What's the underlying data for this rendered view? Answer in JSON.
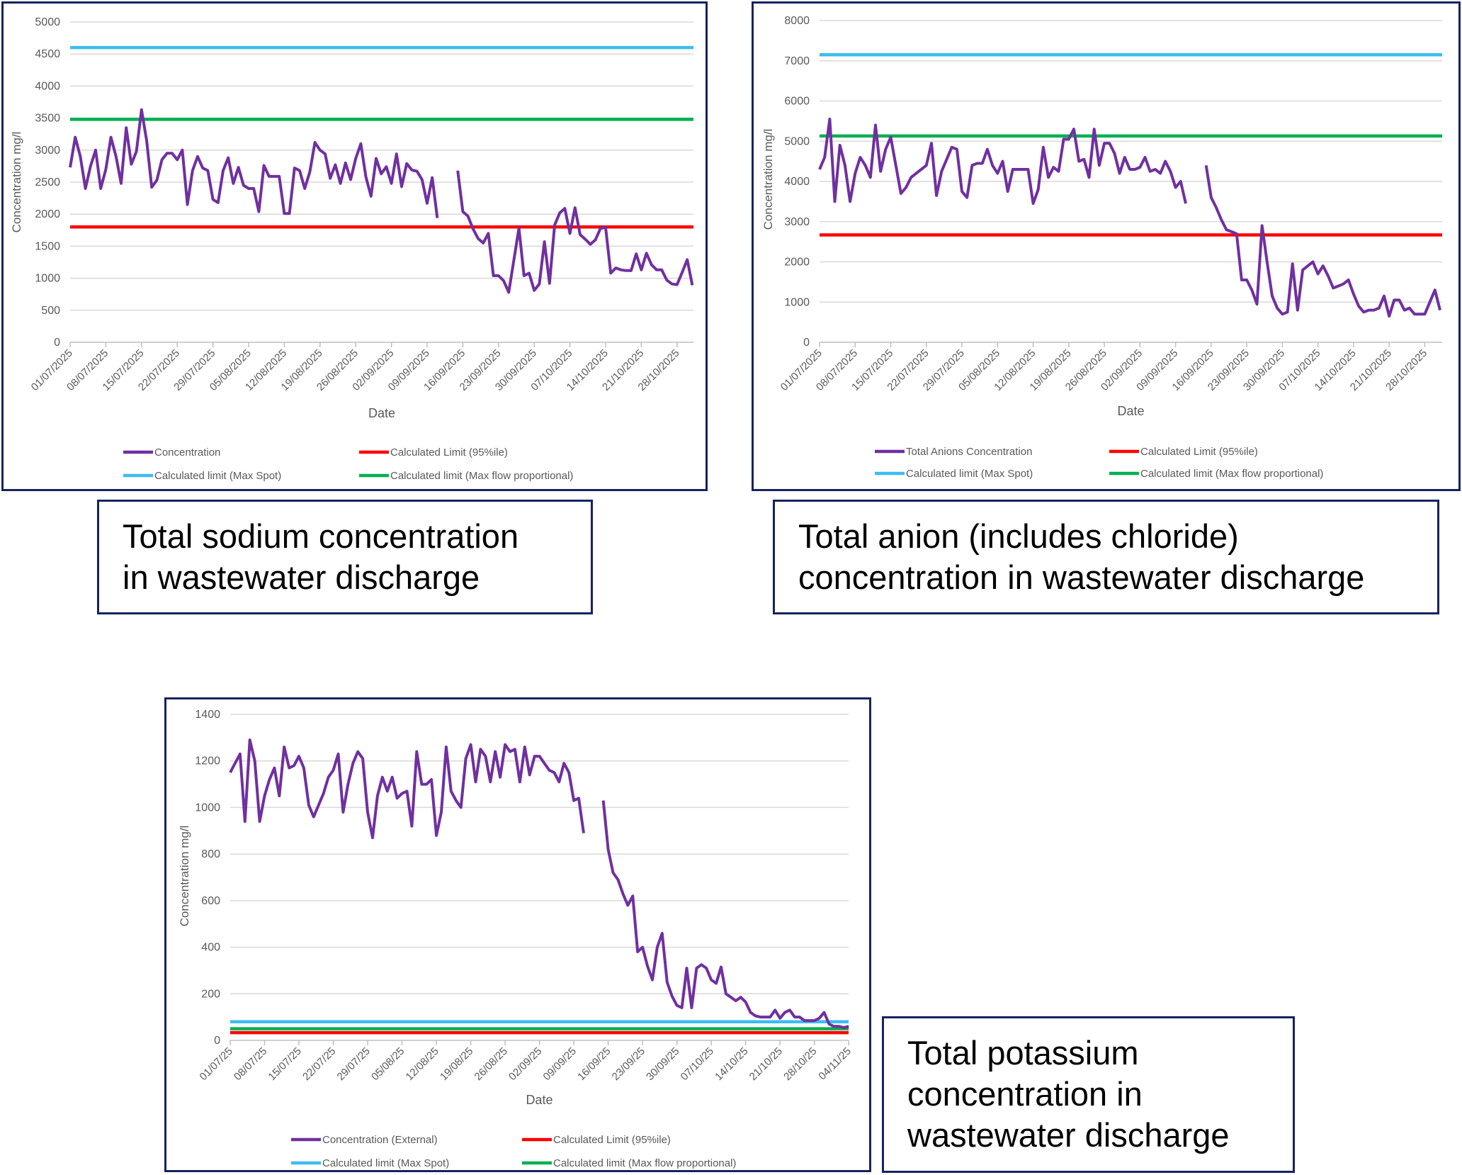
{
  "colors": {
    "concentration": "#7030a0",
    "limit_95": "#ff0000",
    "limit_max_spot": "#3cbcf2",
    "limit_max_flow": "#00b050",
    "grid": "#d9d9d9",
    "frame": "#17235f"
  },
  "captions": [
    {
      "lines": [
        "Total sodium concentration",
        "in wastewater discharge"
      ]
    },
    {
      "lines": [
        "Total anion (includes chloride)",
        "concentration in wastewater discharge"
      ]
    },
    {
      "lines": [
        "Total potassium",
        "concentration in",
        "wastewater discharge"
      ]
    }
  ],
  "chart_data": [
    {
      "type": "line",
      "xlabel": "Date",
      "ylabel": "Concentration mg/l",
      "ylim": [
        0,
        5000
      ],
      "yticks": [
        0,
        500,
        1000,
        1500,
        2000,
        2500,
        3000,
        3500,
        4000,
        4500,
        5000
      ],
      "grid": true,
      "legend_position": "bottom",
      "xtick_labels": [
        "01/07/2025",
        "08/07/2025",
        "15/07/2025",
        "22/07/2025",
        "29/07/2025",
        "05/08/2025",
        "12/08/2025",
        "19/08/2025",
        "26/08/2025",
        "02/09/2025",
        "09/09/2025",
        "16/09/2025",
        "23/09/2025",
        "30/09/2025",
        "07/10/2025",
        "14/10/2025",
        "21/10/2025",
        "28/10/2025"
      ],
      "series": [
        {
          "name": "Concentration",
          "kind": "daily",
          "color_key": "concentration",
          "values": [
            2730,
            3200,
            2900,
            2400,
            2750,
            3000,
            2400,
            2700,
            3200,
            2900,
            2480,
            3350,
            2780,
            2980,
            3630,
            3150,
            2420,
            2530,
            2850,
            2950,
            2950,
            2850,
            3000,
            2150,
            2680,
            2900,
            2720,
            2680,
            2230,
            2180,
            2680,
            2880,
            2480,
            2730,
            2450,
            2400,
            2400,
            2040,
            2760,
            2590,
            2590,
            2590,
            2010,
            2010,
            2720,
            2680,
            2400,
            2660,
            3120,
            3000,
            2940,
            2560,
            2770,
            2480,
            2800,
            2540,
            2870,
            3100,
            2580,
            2280,
            2870,
            2630,
            2740,
            2480,
            2940,
            2430,
            2790,
            2690,
            2670,
            2540,
            2170,
            2570,
            1940,
            null,
            null,
            null,
            2680,
            2040,
            1970,
            1770,
            1620,
            1550,
            1700,
            1040,
            1040,
            960,
            780,
            1280,
            1780,
            1040,
            1080,
            810,
            910,
            1570,
            920,
            1830,
            2020,
            2090,
            1700,
            2100,
            1680,
            1610,
            1530,
            1600,
            1780,
            1790,
            1080,
            1160,
            1130,
            1120,
            1120,
            1380,
            1130,
            1390,
            1210,
            1130,
            1130,
            970,
            910,
            900,
            1090,
            1290,
            890
          ]
        },
        {
          "name": "Calculated Limit (95%ile)",
          "kind": "constant",
          "value": 1800,
          "color_key": "limit_95"
        },
        {
          "name": "Calculated limit (Max Spot)",
          "kind": "constant",
          "value": 4600,
          "color_key": "limit_max_spot"
        },
        {
          "name": "Calculated limit (Max flow proportional)",
          "kind": "constant",
          "value": 3480,
          "color_key": "limit_max_flow"
        }
      ]
    },
    {
      "type": "line",
      "xlabel": "Date",
      "ylabel": "Concentration mg/l",
      "ylim": [
        0,
        8000
      ],
      "yticks": [
        0,
        1000,
        2000,
        3000,
        4000,
        5000,
        6000,
        7000,
        8000
      ],
      "grid": true,
      "legend_position": "bottom",
      "xtick_labels": [
        "01/07/2025",
        "08/07/2025",
        "15/07/2025",
        "22/07/2025",
        "29/07/2025",
        "05/08/2025",
        "12/08/2025",
        "19/08/2025",
        "26/08/2025",
        "02/09/2025",
        "09/09/2025",
        "16/09/2025",
        "23/09/2025",
        "30/09/2025",
        "07/10/2025",
        "14/10/2025",
        "21/10/2025",
        "28/10/2025"
      ],
      "series": [
        {
          "name": "Total Anions Concentration",
          "kind": "daily",
          "color_key": "concentration",
          "values": [
            4300,
            4600,
            5550,
            3500,
            4900,
            4400,
            3500,
            4200,
            4600,
            4400,
            4100,
            5400,
            4250,
            4800,
            5100,
            4400,
            3700,
            3850,
            4100,
            4200,
            4300,
            4400,
            4950,
            3650,
            4250,
            4550,
            4850,
            4800,
            3750,
            3600,
            4400,
            4450,
            4450,
            4800,
            4400,
            4200,
            4500,
            3750,
            4300,
            4300,
            4300,
            4300,
            3450,
            3800,
            4850,
            4100,
            4350,
            4250,
            5050,
            5050,
            5300,
            4500,
            4550,
            4100,
            5300,
            4400,
            4950,
            4950,
            4700,
            4200,
            4600,
            4300,
            4300,
            4350,
            4600,
            4250,
            4300,
            4200,
            4500,
            4250,
            3850,
            4000,
            3450,
            null,
            null,
            null,
            4400,
            3600,
            3350,
            3050,
            2800,
            2750,
            2700,
            1550,
            1550,
            1300,
            950,
            2900,
            2000,
            1150,
            850,
            700,
            750,
            1950,
            800,
            1800,
            1900,
            2000,
            1700,
            1900,
            1650,
            1350,
            1400,
            1450,
            1550,
            1200,
            900,
            750,
            800,
            800,
            850,
            1150,
            650,
            1050,
            1050,
            800,
            850,
            700,
            700,
            700,
            1000,
            1300,
            800
          ]
        },
        {
          "name": "Calculated Limit (95%ile)",
          "kind": "constant",
          "value": 2670,
          "color_key": "limit_95"
        },
        {
          "name": "Calculated limit (Max Spot)",
          "kind": "constant",
          "value": 7150,
          "color_key": "limit_max_spot"
        },
        {
          "name": "Calculated limit (Max flow proportional)",
          "kind": "constant",
          "value": 5130,
          "color_key": "limit_max_flow"
        }
      ]
    },
    {
      "type": "line",
      "xlabel": "Date",
      "ylabel": "Concentration mg/l",
      "ylim": [
        0,
        1400
      ],
      "yticks": [
        0,
        200,
        400,
        600,
        800,
        1000,
        1200,
        1400
      ],
      "grid": true,
      "legend_position": "bottom",
      "xtick_labels": [
        "01/07/25",
        "08/07/25",
        "15/07/25",
        "22/07/25",
        "29/07/25",
        "05/08/25",
        "12/08/25",
        "19/08/25",
        "26/08/25",
        "02/09/25",
        "09/09/25",
        "16/09/25",
        "23/09/25",
        "30/09/25",
        "07/10/25",
        "14/10/25",
        "21/10/25",
        "28/10/25",
        "04/11/25"
      ],
      "series": [
        {
          "name": "Concentration  (External)",
          "kind": "daily",
          "color_key": "concentration",
          "values": [
            1150,
            1190,
            1230,
            940,
            1290,
            1200,
            940,
            1050,
            1120,
            1170,
            1050,
            1260,
            1170,
            1180,
            1220,
            1170,
            1010,
            960,
            1010,
            1060,
            1130,
            1160,
            1230,
            980,
            1100,
            1190,
            1240,
            1210,
            980,
            870,
            1050,
            1130,
            1070,
            1130,
            1040,
            1060,
            1070,
            920,
            1240,
            1100,
            1100,
            1120,
            880,
            980,
            1260,
            1070,
            1030,
            1000,
            1210,
            1270,
            1110,
            1250,
            1220,
            1110,
            1240,
            1130,
            1270,
            1240,
            1250,
            1110,
            1260,
            1140,
            1220,
            1220,
            1190,
            1160,
            1150,
            1110,
            1190,
            1150,
            1030,
            1040,
            890,
            null,
            null,
            null,
            1030,
            820,
            720,
            690,
            630,
            580,
            620,
            380,
            400,
            320,
            260,
            400,
            460,
            250,
            190,
            150,
            140,
            310,
            140,
            310,
            325,
            310,
            260,
            245,
            315,
            200,
            185,
            170,
            185,
            165,
            120,
            105,
            100,
            100,
            100,
            130,
            95,
            120,
            130,
            100,
            100,
            85,
            85,
            85,
            95,
            120,
            70,
            60,
            60,
            55,
            60
          ]
        },
        {
          "name": "Calculated Limit (95%ile)",
          "kind": "constant",
          "value": 33,
          "color_key": "limit_95"
        },
        {
          "name": "Calculated limit (Max Spot)",
          "kind": "constant",
          "value": 80,
          "color_key": "limit_max_spot"
        },
        {
          "name": "Calculated limit (Max flow proportional)",
          "kind": "constant",
          "value": 50,
          "color_key": "limit_max_flow"
        }
      ]
    }
  ]
}
